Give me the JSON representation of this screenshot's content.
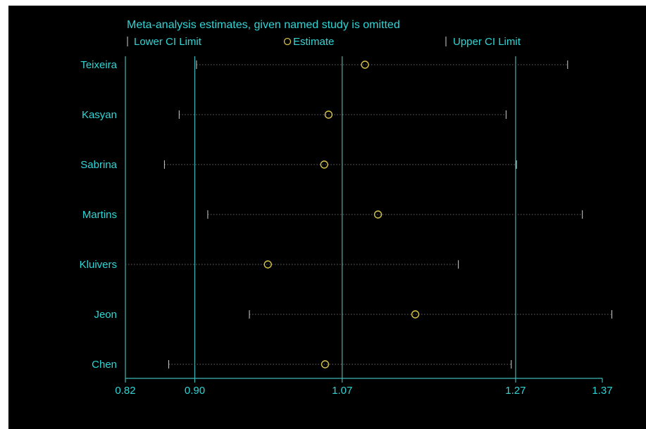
{
  "chart_data": {
    "type": "scatter",
    "title": "Meta-analysis estimates, given named study is omitted",
    "legend": {
      "placement": "top",
      "entries": [
        {
          "label": "Lower CI Limit",
          "marker": "tick"
        },
        {
          "label": "Estimate",
          "marker": "circle"
        },
        {
          "label": "Upper CI Limit",
          "marker": "tick"
        }
      ]
    },
    "x_ticks": [
      "0.82",
      "0.90",
      "1.07",
      "1.27",
      "1.37"
    ],
    "x_tick_values": [
      0.82,
      0.9,
      1.07,
      1.27,
      1.37
    ],
    "xlim": [
      0.82,
      1.37
    ],
    "reference_lines": [
      0.9,
      1.07,
      1.27
    ],
    "grid": false,
    "studies": [
      {
        "name": "Teixeira",
        "lower": 0.902,
        "estimate": 1.0963,
        "upper": 1.33
      },
      {
        "name": "Kasyan",
        "lower": 0.882,
        "estimate": 1.0543,
        "upper": 1.259
      },
      {
        "name": "Sabrina",
        "lower": 0.865,
        "estimate": 1.0493,
        "upper": 1.271
      },
      {
        "name": "Martins",
        "lower": 0.915,
        "estimate": 1.1113,
        "upper": 1.347
      },
      {
        "name": "Kluivers",
        "lower": 0.82,
        "estimate": 0.9843,
        "upper": 1.204
      },
      {
        "name": "Jeon",
        "lower": 0.963,
        "estimate": 1.1543,
        "upper": 1.381
      },
      {
        "name": "Chen",
        "lower": 0.87,
        "estimate": 1.0503,
        "upper": 1.265
      }
    ]
  },
  "colors": {
    "background": "#000000",
    "text": "#2fd6d6",
    "axis": "#3fb6b6",
    "estimate": "#d6c24a",
    "dotted": "#6a6a6a",
    "tick": "#d0d0d0"
  }
}
